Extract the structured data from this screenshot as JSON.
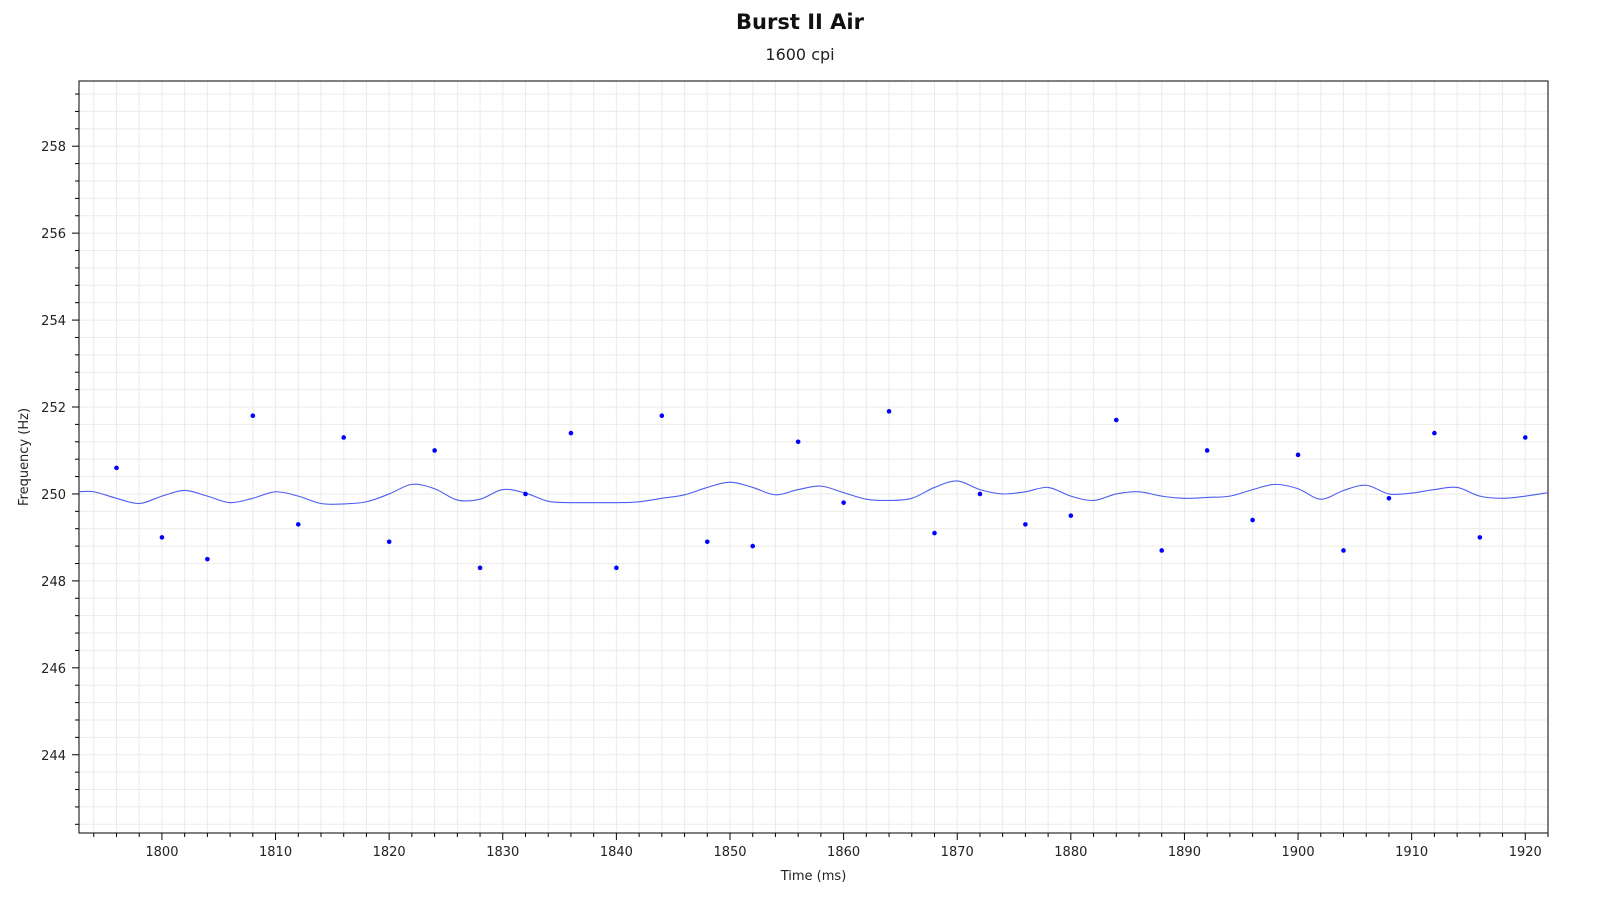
{
  "chart_data": {
    "type": "scatter",
    "title": "Burst II Air",
    "subtitle": "1600 cpi",
    "xlabel": "Time (ms)",
    "ylabel": "Frequency (Hz)",
    "xlim": [
      1792.7,
      1922
    ],
    "ylim": [
      242.2,
      259.5
    ],
    "x_ticks": [
      1800,
      1810,
      1820,
      1830,
      1840,
      1850,
      1860,
      1870,
      1880,
      1890,
      1900,
      1910,
      1920
    ],
    "y_ticks": [
      244,
      246,
      248,
      250,
      252,
      254,
      256,
      258
    ],
    "grid": true,
    "legend": "none",
    "colors": {
      "points": "#0000ff",
      "line": "#4d5cf2",
      "grid": "#ebebeb",
      "axis": "#000000"
    },
    "series": [
      {
        "kind": "points",
        "x": [
          1796,
          1800,
          1804,
          1808,
          1812,
          1816,
          1820,
          1824,
          1828,
          1832,
          1836,
          1840,
          1844,
          1848,
          1852,
          1856,
          1860,
          1864,
          1868,
          1872,
          1876,
          1880,
          1884,
          1888,
          1892,
          1896,
          1900,
          1904,
          1908,
          1912,
          1916,
          1920
        ],
        "y": [
          250.6,
          249.0,
          248.5,
          251.8,
          249.3,
          251.3,
          248.9,
          251.0,
          248.3,
          250.0,
          251.4,
          248.3,
          251.8,
          248.9,
          248.8,
          251.2,
          249.8,
          251.9,
          249.1,
          250.0,
          249.3,
          249.5,
          251.7,
          248.7,
          251.0,
          249.4,
          250.9,
          248.7,
          249.9,
          251.4,
          249.0,
          251.3
        ]
      },
      {
        "kind": "line",
        "x": [
          1792.7,
          1794,
          1796,
          1798,
          1800,
          1802,
          1804,
          1806,
          1808,
          1810,
          1812,
          1814,
          1816,
          1818,
          1820,
          1822,
          1824,
          1826,
          1828,
          1830,
          1832,
          1834,
          1836,
          1838,
          1840,
          1842,
          1844,
          1846,
          1848,
          1850,
          1852,
          1854,
          1856,
          1858,
          1860,
          1862,
          1864,
          1866,
          1868,
          1870,
          1872,
          1874,
          1876,
          1878,
          1880,
          1882,
          1884,
          1886,
          1888,
          1890,
          1892,
          1894,
          1896,
          1898,
          1900,
          1902,
          1904,
          1906,
          1908,
          1910,
          1912,
          1914,
          1916,
          1918,
          1920,
          1922
        ],
        "y": [
          250.05,
          250.05,
          249.9,
          249.78,
          249.95,
          250.08,
          249.95,
          249.8,
          249.9,
          250.05,
          249.95,
          249.78,
          249.77,
          249.82,
          250.0,
          250.22,
          250.12,
          249.86,
          249.88,
          250.1,
          250.02,
          249.83,
          249.8,
          249.8,
          249.8,
          249.82,
          249.9,
          249.98,
          250.15,
          250.27,
          250.15,
          249.98,
          250.1,
          250.18,
          250.03,
          249.88,
          249.85,
          249.9,
          250.15,
          250.3,
          250.1,
          250.0,
          250.05,
          250.15,
          249.95,
          249.85,
          250.0,
          250.05,
          249.95,
          249.9,
          249.92,
          249.95,
          250.1,
          250.22,
          250.12,
          249.88,
          250.08,
          250.2,
          250.0,
          250.02,
          250.1,
          250.15,
          249.95,
          249.9,
          249.95,
          250.03
        ]
      }
    ]
  }
}
